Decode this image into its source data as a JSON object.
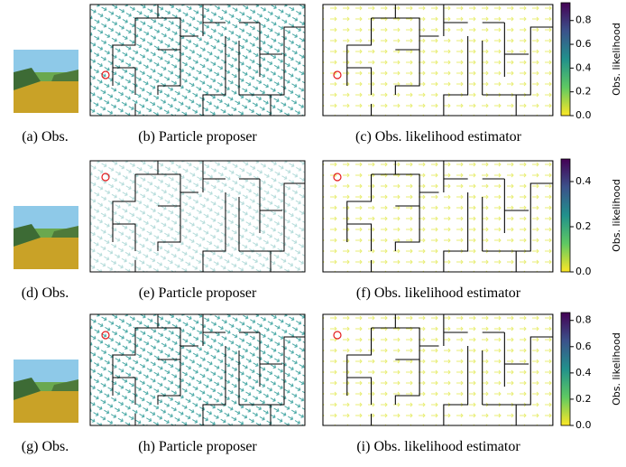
{
  "panels": [
    {
      "obs_caption": "(a) Obs.",
      "proposer_caption": "(b) Particle proposer",
      "estimator_caption": "(c) Obs. likelihood estimator",
      "colorbar": {
        "label": "Obs. likelihood",
        "lim": [
          0,
          0.95
        ],
        "ticks": [
          {
            "value": 0,
            "label": "0.0"
          },
          {
            "value": 0.2,
            "label": "0.2"
          },
          {
            "value": 0.4,
            "label": "0.4"
          },
          {
            "value": 0.6,
            "label": "0.6"
          },
          {
            "value": 0.8,
            "label": "0.8"
          }
        ]
      }
    },
    {
      "obs_caption": "(d) Obs.",
      "proposer_caption": "(e) Particle proposer",
      "estimator_caption": "(f) Obs. likelihood estimator",
      "colorbar": {
        "label": "Obs. likelihood",
        "lim": [
          0,
          0.5
        ],
        "ticks": [
          {
            "value": 0,
            "label": "0.0"
          },
          {
            "value": 0.2,
            "label": "0.2"
          },
          {
            "value": 0.4,
            "label": "0.4"
          }
        ]
      }
    },
    {
      "obs_caption": "(g) Obs.",
      "proposer_caption": "(h) Particle proposer",
      "estimator_caption": "(i) Obs. likelihood estimator",
      "colorbar": {
        "label": "Obs. likelihood",
        "lim": [
          0,
          0.86
        ],
        "ticks": [
          {
            "value": 0,
            "label": "0.0"
          },
          {
            "value": 0.2,
            "label": "0.2"
          },
          {
            "value": 0.4,
            "label": "0.4"
          },
          {
            "value": 0.6,
            "label": "0.6"
          },
          {
            "value": 0.8,
            "label": "0.8"
          }
        ]
      }
    }
  ]
}
